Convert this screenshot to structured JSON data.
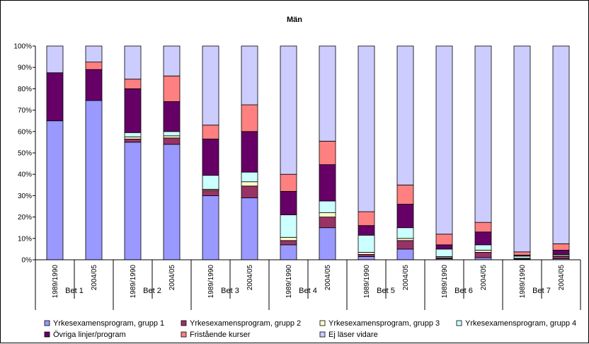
{
  "chart_data": {
    "type": "bar",
    "stacked": true,
    "title": "Män",
    "xlabel": "",
    "ylabel": "",
    "ylim": [
      0,
      100
    ],
    "ytick_format": "percent",
    "yticks": [
      "0%",
      "10%",
      "20%",
      "30%",
      "40%",
      "50%",
      "60%",
      "70%",
      "80%",
      "90%",
      "100%"
    ],
    "grid": false,
    "legend_position": "bottom",
    "categories": [
      "1989/1990",
      "2004/05",
      "1989/1990",
      "2004/05",
      "1989/1990",
      "2004/05",
      "1989/1990",
      "2004/05",
      "1989/1990",
      "2004/05",
      "1989/1990",
      "2004/05",
      "1989/1990",
      "2004/05"
    ],
    "groups": [
      "Bet 1",
      "Bet 2",
      "Bet 3",
      "Bet 4",
      "Bet 5",
      "Bet 6",
      "Bet 7"
    ],
    "series": [
      {
        "name": "Yrkesexamensprogram, grupp 1",
        "color": "#9999ff",
        "values": [
          65,
          74.5,
          55,
          54,
          30,
          29,
          7,
          15,
          1.5,
          5,
          0.5,
          1,
          0.2,
          0.5
        ]
      },
      {
        "name": "Yrkesexamensprogram, grupp 2",
        "color": "#993366",
        "values": [
          0,
          0,
          1.5,
          3,
          2.5,
          5.5,
          2,
          5,
          1,
          4,
          0.5,
          2.5,
          0.2,
          1
        ]
      },
      {
        "name": "Yrkesexamensprogram, grupp 3",
        "color": "#ffffcc",
        "values": [
          0,
          0,
          1,
          1,
          0.5,
          2,
          1.5,
          2,
          1,
          1,
          0.5,
          1,
          0.3,
          0.5
        ]
      },
      {
        "name": "Yrkesexamensprogram, grupp 4",
        "color": "#ccffff",
        "values": [
          0,
          0,
          2,
          2,
          6.5,
          4.5,
          10.5,
          5.5,
          8,
          5,
          3.5,
          2.5,
          1,
          0.5
        ]
      },
      {
        "name": "Övriga linjer/program",
        "color": "#660066",
        "values": [
          22.5,
          14.5,
          20.5,
          14,
          17,
          19,
          11,
          17,
          4.5,
          11,
          2,
          6,
          0.5,
          2
        ]
      },
      {
        "name": "Fristående kurser",
        "color": "#ff8080",
        "values": [
          0,
          3.5,
          4.5,
          12,
          6.5,
          12.5,
          8,
          11,
          6.5,
          9,
          5,
          4.5,
          1.5,
          3
        ]
      },
      {
        "name": "Ej läser vidare",
        "color": "#ccccff",
        "values": [
          12.5,
          7.5,
          15.5,
          14,
          37,
          27.5,
          60,
          44.5,
          77.5,
          65,
          88,
          82.5,
          96.3,
          92.5
        ]
      }
    ]
  }
}
